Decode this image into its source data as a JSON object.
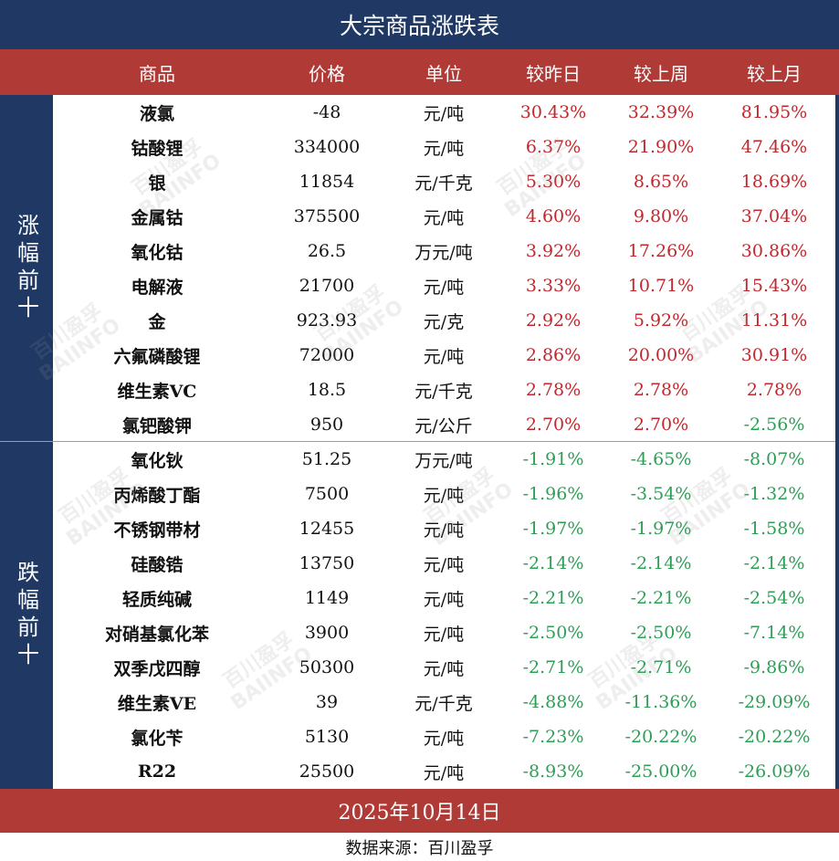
{
  "title": "大宗商品涨跌表",
  "headers": [
    "商品",
    "价格",
    "单位",
    "较昨日",
    "较上周",
    "较上月"
  ],
  "group_up_label": "涨幅前十",
  "group_down_label": "跌幅前十",
  "rows": [
    {
      "name": "液氯",
      "price": "-48",
      "unit": "元/吨",
      "day": "30.43%",
      "week": "32.39%",
      "month": "81.95%"
    },
    {
      "name": "钴酸锂",
      "price": "334000",
      "unit": "元/吨",
      "day": "6.37%",
      "week": "21.90%",
      "month": "47.46%"
    },
    {
      "name": "银",
      "price": "11854",
      "unit": "元/千克",
      "day": "5.30%",
      "week": "8.65%",
      "month": "18.69%"
    },
    {
      "name": "金属钴",
      "price": "375500",
      "unit": "元/吨",
      "day": "4.60%",
      "week": "9.80%",
      "month": "37.04%"
    },
    {
      "name": "氧化钴",
      "price": "26.5",
      "unit": "万元/吨",
      "day": "3.92%",
      "week": "17.26%",
      "month": "30.86%"
    },
    {
      "name": "电解液",
      "price": "21700",
      "unit": "元/吨",
      "day": "3.33%",
      "week": "10.71%",
      "month": "15.43%"
    },
    {
      "name": "金",
      "price": "923.93",
      "unit": "元/克",
      "day": "2.92%",
      "week": "5.92%",
      "month": "11.31%"
    },
    {
      "name": "六氟磷酸锂",
      "price": "72000",
      "unit": "元/吨",
      "day": "2.86%",
      "week": "20.00%",
      "month": "30.91%"
    },
    {
      "name": "维生素VC",
      "price": "18.5",
      "unit": "元/千克",
      "day": "2.78%",
      "week": "2.78%",
      "month": "2.78%"
    },
    {
      "name": "氯钯酸钾",
      "price": "950",
      "unit": "元/公斤",
      "day": "2.70%",
      "week": "2.70%",
      "month": "-2.56%"
    },
    {
      "name": "氧化钬",
      "price": "51.25",
      "unit": "万元/吨",
      "day": "-1.91%",
      "week": "-4.65%",
      "month": "-8.07%"
    },
    {
      "name": "丙烯酸丁酯",
      "price": "7500",
      "unit": "元/吨",
      "day": "-1.96%",
      "week": "-3.54%",
      "month": "-1.32%"
    },
    {
      "name": "不锈钢带材",
      "price": "12455",
      "unit": "元/吨",
      "day": "-1.97%",
      "week": "-1.97%",
      "month": "-1.58%"
    },
    {
      "name": "硅酸锆",
      "price": "13750",
      "unit": "元/吨",
      "day": "-2.14%",
      "week": "-2.14%",
      "month": "-2.14%"
    },
    {
      "name": "轻质纯碱",
      "price": "1149",
      "unit": "元/吨",
      "day": "-2.21%",
      "week": "-2.21%",
      "month": "-2.54%"
    },
    {
      "name": "对硝基氯化苯",
      "price": "3900",
      "unit": "元/吨",
      "day": "-2.50%",
      "week": "-2.50%",
      "month": "-7.14%"
    },
    {
      "name": "双季戊四醇",
      "price": "50300",
      "unit": "元/吨",
      "day": "-2.71%",
      "week": "-2.71%",
      "month": "-9.86%"
    },
    {
      "name": "维生素VE",
      "price": "39",
      "unit": "元/千克",
      "day": "-4.88%",
      "week": "-11.36%",
      "month": "-29.09%"
    },
    {
      "name": "氯化苄",
      "price": "5130",
      "unit": "元/吨",
      "day": "-7.23%",
      "week": "-20.22%",
      "month": "-20.22%"
    },
    {
      "name": "R22",
      "price": "25500",
      "unit": "元/吨",
      "day": "-8.93%",
      "week": "-25.00%",
      "month": "-26.09%"
    }
  ],
  "date": "2025年10月14日",
  "source": "数据来源：百川盈孚",
  "watermark": {
    "line1": "百川盈孚",
    "line2": "BAIINFO"
  },
  "colors": {
    "navy": "#1f3864",
    "red_band": "#b03a36",
    "up": "#c1272d",
    "down": "#2e9e57"
  }
}
